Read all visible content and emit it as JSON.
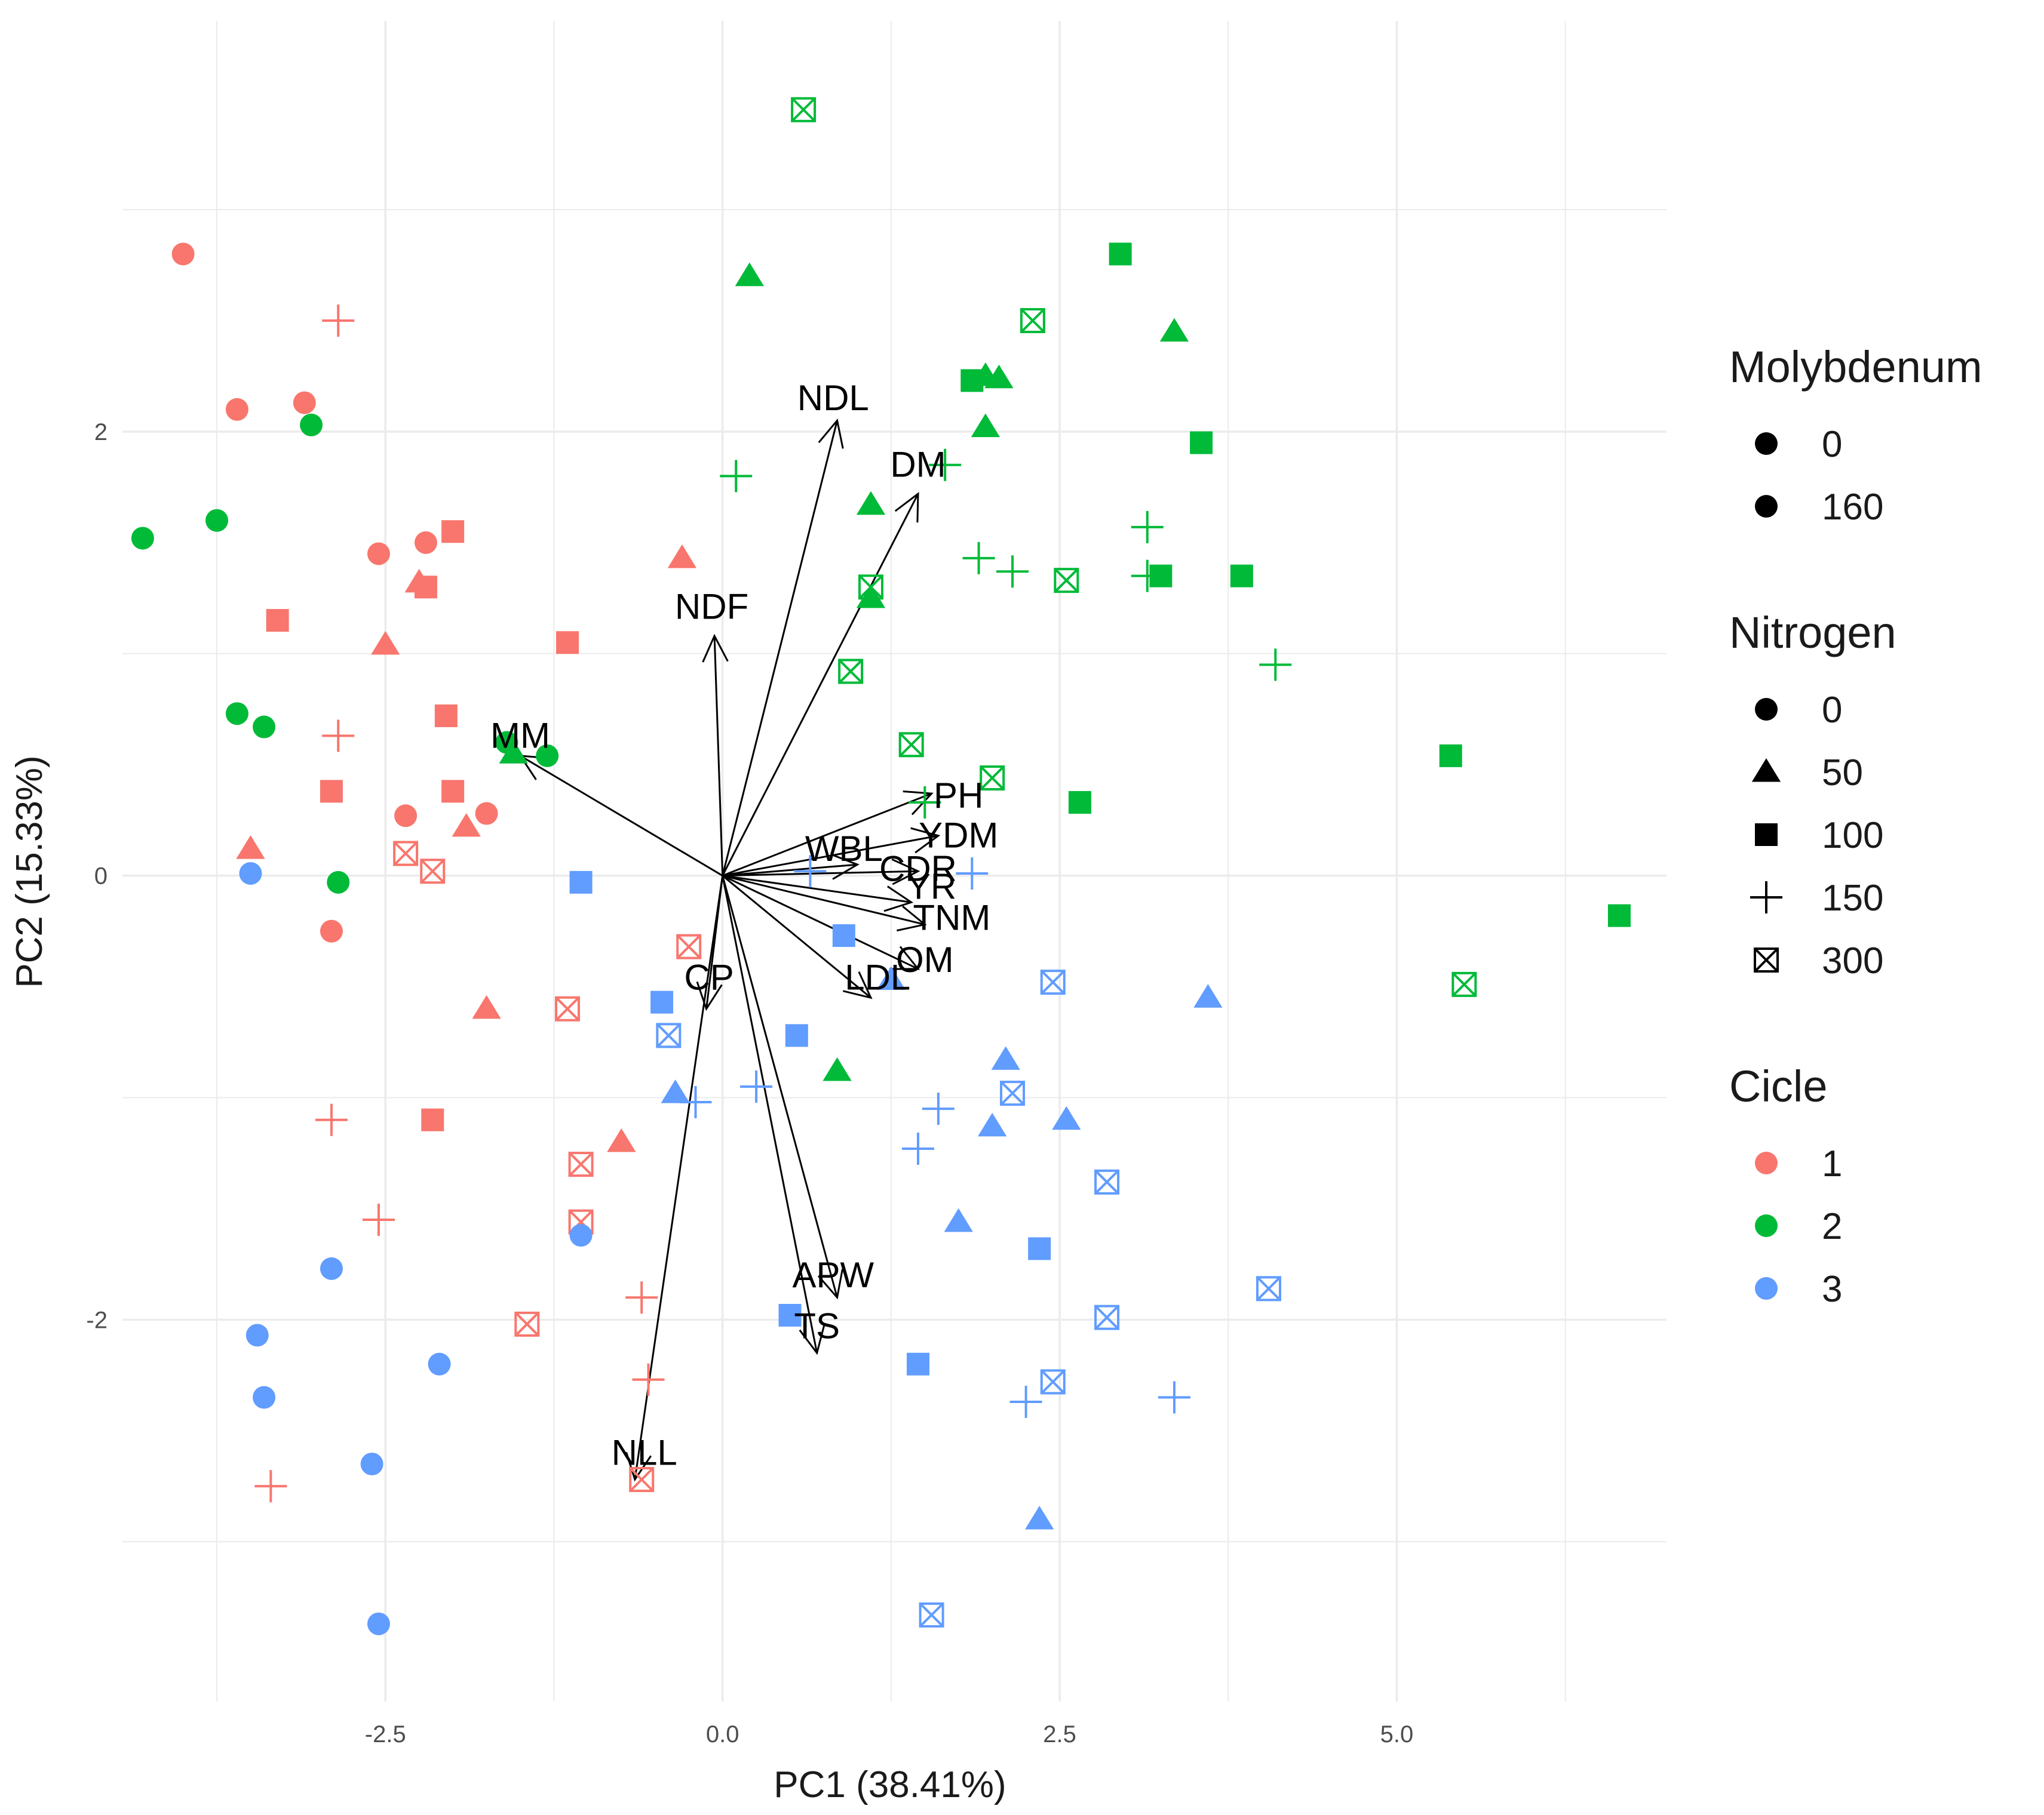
{
  "chart_data": {
    "type": "scatter",
    "subtype": "pca-biplot",
    "title": "",
    "xlabel": "PC1 (38.41%)",
    "ylabel": "PC2 (15.33%)",
    "xlim": [
      -4.45,
      7.0
    ],
    "ylim": [
      -3.72,
      3.85
    ],
    "xticks": [
      -2.5,
      0.0,
      2.5,
      5.0
    ],
    "xtick_labels": [
      "-2.5",
      "0.0",
      "2.5",
      "5.0"
    ],
    "yticks": [
      -2,
      0,
      2
    ],
    "ytick_labels": [
      "-2",
      "0",
      "2"
    ],
    "grid": true,
    "legend_position": "right",
    "colors": {
      "1": "#F8766D",
      "2": "#00BA38",
      "3": "#619CFF"
    },
    "legends": [
      {
        "title": "Molybdenum",
        "key": "mo",
        "items": [
          {
            "label": "0",
            "shape": "circle"
          },
          {
            "label": "160",
            "shape": "circle"
          }
        ]
      },
      {
        "title": "Nitrogen",
        "key": "n",
        "items": [
          {
            "label": "0",
            "shape": "circle"
          },
          {
            "label": "50",
            "shape": "triangle"
          },
          {
            "label": "100",
            "shape": "square"
          },
          {
            "label": "150",
            "shape": "plus"
          },
          {
            "label": "300",
            "shape": "boxx"
          }
        ]
      },
      {
        "title": "Cicle",
        "key": "c",
        "items": [
          {
            "label": "1",
            "shape": "circle",
            "color": "#F8766D"
          },
          {
            "label": "2",
            "shape": "circle",
            "color": "#00BA38"
          },
          {
            "label": "3",
            "shape": "circle",
            "color": "#619CFF"
          }
        ]
      }
    ],
    "loadings": [
      {
        "label": "NDL",
        "x": 0.85,
        "y": 2.05,
        "lx": 0.82,
        "ly": 2.15
      },
      {
        "label": "DM",
        "x": 1.45,
        "y": 1.72,
        "lx": 1.45,
        "ly": 1.85
      },
      {
        "label": "NDF",
        "x": -0.06,
        "y": 1.08,
        "lx": -0.08,
        "ly": 1.21
      },
      {
        "label": "MM",
        "x": -1.5,
        "y": 0.54,
        "lx": -1.5,
        "ly": 0.63
      },
      {
        "label": "PH",
        "x": 1.55,
        "y": 0.37,
        "lx": 1.75,
        "ly": 0.36
      },
      {
        "label": "YDM",
        "x": 1.6,
        "y": 0.18,
        "lx": 1.75,
        "ly": 0.18
      },
      {
        "label": "WBL",
        "x": 1.0,
        "y": 0.05,
        "lx": 0.9,
        "ly": 0.12
      },
      {
        "label": "CDR",
        "x": 1.45,
        "y": 0.02,
        "lx": 1.45,
        "ly": 0.03
      },
      {
        "label": "YR",
        "x": 1.4,
        "y": -0.12,
        "lx": 1.55,
        "ly": -0.05
      },
      {
        "label": "TNM",
        "x": 1.5,
        "y": -0.22,
        "lx": 1.7,
        "ly": -0.19
      },
      {
        "label": "OM",
        "x": 1.45,
        "y": -0.42,
        "lx": 1.5,
        "ly": -0.38
      },
      {
        "label": "LDL",
        "x": 1.1,
        "y": -0.55,
        "lx": 1.15,
        "ly": -0.46
      },
      {
        "label": "CP",
        "x": -0.12,
        "y": -0.6,
        "lx": -0.1,
        "ly": -0.46
      },
      {
        "label": "APW",
        "x": 0.85,
        "y": -1.9,
        "lx": 0.82,
        "ly": -1.8
      },
      {
        "label": "TS",
        "x": 0.7,
        "y": -2.15,
        "lx": 0.7,
        "ly": -2.03
      },
      {
        "label": "NLL",
        "x": -0.65,
        "y": -2.72,
        "lx": -0.58,
        "ly": -2.6
      }
    ],
    "points": [
      {
        "x": -4.0,
        "y": 2.8,
        "c": 1,
        "n": "0"
      },
      {
        "x": -2.85,
        "y": 2.5,
        "c": 1,
        "n": "150"
      },
      {
        "x": -3.6,
        "y": 2.1,
        "c": 1,
        "n": "0"
      },
      {
        "x": -3.1,
        "y": 2.13,
        "c": 1,
        "n": "0"
      },
      {
        "x": -2.55,
        "y": 1.45,
        "c": 1,
        "n": "0"
      },
      {
        "x": -2.2,
        "y": 1.5,
        "c": 1,
        "n": "0"
      },
      {
        "x": -2.0,
        "y": 1.55,
        "c": 1,
        "n": "100"
      },
      {
        "x": -3.3,
        "y": 1.15,
        "c": 1,
        "n": "100"
      },
      {
        "x": -2.25,
        "y": 1.32,
        "c": 1,
        "n": "50"
      },
      {
        "x": -2.2,
        "y": 1.3,
        "c": 1,
        "n": "100"
      },
      {
        "x": -2.5,
        "y": 1.04,
        "c": 1,
        "n": "50"
      },
      {
        "x": -1.15,
        "y": 1.05,
        "c": 1,
        "n": "100"
      },
      {
        "x": -0.3,
        "y": 1.43,
        "c": 1,
        "n": "50"
      },
      {
        "x": -2.85,
        "y": 0.63,
        "c": 1,
        "n": "150"
      },
      {
        "x": -2.05,
        "y": 0.72,
        "c": 1,
        "n": "100"
      },
      {
        "x": -2.9,
        "y": 0.38,
        "c": 1,
        "n": "100"
      },
      {
        "x": -2.0,
        "y": 0.38,
        "c": 1,
        "n": "100"
      },
      {
        "x": -2.35,
        "y": 0.27,
        "c": 1,
        "n": "0"
      },
      {
        "x": -1.75,
        "y": 0.28,
        "c": 1,
        "n": "0"
      },
      {
        "x": -1.9,
        "y": 0.22,
        "c": 1,
        "n": "50"
      },
      {
        "x": -3.5,
        "y": 0.12,
        "c": 1,
        "n": "50"
      },
      {
        "x": -2.35,
        "y": 0.1,
        "c": 1,
        "n": "300"
      },
      {
        "x": -2.15,
        "y": 0.02,
        "c": 1,
        "n": "300"
      },
      {
        "x": -2.9,
        "y": -0.25,
        "c": 1,
        "n": "0"
      },
      {
        "x": -1.75,
        "y": -0.6,
        "c": 1,
        "n": "50"
      },
      {
        "x": -1.15,
        "y": -0.6,
        "c": 1,
        "n": "300"
      },
      {
        "x": -0.25,
        "y": -0.32,
        "c": 1,
        "n": "300"
      },
      {
        "x": -2.15,
        "y": -1.1,
        "c": 1,
        "n": "100"
      },
      {
        "x": -2.9,
        "y": -1.1,
        "c": 1,
        "n": "150"
      },
      {
        "x": -0.75,
        "y": -1.2,
        "c": 1,
        "n": "50"
      },
      {
        "x": -1.05,
        "y": -1.3,
        "c": 1,
        "n": "300"
      },
      {
        "x": -2.55,
        "y": -1.55,
        "c": 1,
        "n": "150"
      },
      {
        "x": -1.05,
        "y": -1.56,
        "c": 1,
        "n": "300"
      },
      {
        "x": -0.6,
        "y": -1.9,
        "c": 1,
        "n": "150"
      },
      {
        "x": -1.45,
        "y": -2.02,
        "c": 1,
        "n": "300"
      },
      {
        "x": -0.55,
        "y": -2.27,
        "c": 1,
        "n": "150"
      },
      {
        "x": -0.6,
        "y": -2.72,
        "c": 1,
        "n": "300"
      },
      {
        "x": -3.35,
        "y": -2.75,
        "c": 1,
        "n": "150"
      },
      {
        "x": 0.6,
        "y": 3.45,
        "c": 2,
        "n": "300"
      },
      {
        "x": 0.2,
        "y": 2.7,
        "c": 2,
        "n": "50"
      },
      {
        "x": 2.95,
        "y": 2.8,
        "c": 2,
        "n": "100"
      },
      {
        "x": 2.3,
        "y": 2.5,
        "c": 2,
        "n": "300"
      },
      {
        "x": 3.35,
        "y": 2.45,
        "c": 2,
        "n": "50"
      },
      {
        "x": 1.85,
        "y": 2.23,
        "c": 2,
        "n": "100"
      },
      {
        "x": 1.95,
        "y": 2.25,
        "c": 2,
        "n": "50"
      },
      {
        "x": 2.05,
        "y": 2.24,
        "c": 2,
        "n": "50"
      },
      {
        "x": 1.95,
        "y": 2.02,
        "c": 2,
        "n": "50"
      },
      {
        "x": 3.55,
        "y": 1.95,
        "c": 2,
        "n": "100"
      },
      {
        "x": -3.05,
        "y": 2.03,
        "c": 2,
        "n": "0"
      },
      {
        "x": 0.1,
        "y": 1.8,
        "c": 2,
        "n": "150"
      },
      {
        "x": 1.1,
        "y": 1.67,
        "c": 2,
        "n": "50"
      },
      {
        "x": 1.65,
        "y": 1.85,
        "c": 2,
        "n": "150"
      },
      {
        "x": -3.75,
        "y": 1.6,
        "c": 2,
        "n": "0"
      },
      {
        "x": -4.3,
        "y": 1.52,
        "c": 2,
        "n": "0"
      },
      {
        "x": 3.15,
        "y": 1.57,
        "c": 2,
        "n": "150"
      },
      {
        "x": 1.9,
        "y": 1.43,
        "c": 2,
        "n": "150"
      },
      {
        "x": 2.15,
        "y": 1.37,
        "c": 2,
        "n": "150"
      },
      {
        "x": 2.55,
        "y": 1.33,
        "c": 2,
        "n": "300"
      },
      {
        "x": 3.15,
        "y": 1.35,
        "c": 2,
        "n": "150"
      },
      {
        "x": 3.25,
        "y": 1.35,
        "c": 2,
        "n": "100"
      },
      {
        "x": 3.85,
        "y": 1.35,
        "c": 2,
        "n": "100"
      },
      {
        "x": 1.1,
        "y": 1.3,
        "c": 2,
        "n": "300"
      },
      {
        "x": 1.1,
        "y": 1.25,
        "c": 2,
        "n": "50"
      },
      {
        "x": 4.1,
        "y": 0.95,
        "c": 2,
        "n": "150"
      },
      {
        "x": 0.95,
        "y": 0.92,
        "c": 2,
        "n": "300"
      },
      {
        "x": -3.6,
        "y": 0.73,
        "c": 2,
        "n": "0"
      },
      {
        "x": -3.4,
        "y": 0.67,
        "c": 2,
        "n": "0"
      },
      {
        "x": 1.4,
        "y": 0.59,
        "c": 2,
        "n": "300"
      },
      {
        "x": -1.6,
        "y": 0.6,
        "c": 2,
        "n": "0"
      },
      {
        "x": -1.3,
        "y": 0.54,
        "c": 2,
        "n": "0"
      },
      {
        "x": -1.55,
        "y": 0.55,
        "c": 2,
        "n": "50"
      },
      {
        "x": 5.4,
        "y": 0.54,
        "c": 2,
        "n": "100"
      },
      {
        "x": 2.0,
        "y": 0.44,
        "c": 2,
        "n": "300"
      },
      {
        "x": 2.65,
        "y": 0.33,
        "c": 2,
        "n": "100"
      },
      {
        "x": 1.5,
        "y": 0.33,
        "c": 2,
        "n": "150"
      },
      {
        "x": -2.85,
        "y": -0.03,
        "c": 2,
        "n": "0"
      },
      {
        "x": 6.65,
        "y": -0.18,
        "c": 2,
        "n": "100"
      },
      {
        "x": 5.5,
        "y": -0.49,
        "c": 2,
        "n": "300"
      },
      {
        "x": 0.85,
        "y": -0.88,
        "c": 2,
        "n": "50"
      },
      {
        "x": -3.5,
        "y": 0.01,
        "c": 3,
        "n": "0"
      },
      {
        "x": -1.05,
        "y": -0.03,
        "c": 3,
        "n": "100"
      },
      {
        "x": 0.65,
        "y": 0.02,
        "c": 3,
        "n": "150"
      },
      {
        "x": 1.85,
        "y": 0.01,
        "c": 3,
        "n": "150"
      },
      {
        "x": 0.9,
        "y": -0.27,
        "c": 3,
        "n": "100"
      },
      {
        "x": 1.25,
        "y": -0.47,
        "c": 3,
        "n": "50"
      },
      {
        "x": 2.45,
        "y": -0.48,
        "c": 3,
        "n": "300"
      },
      {
        "x": 3.6,
        "y": -0.55,
        "c": 3,
        "n": "50"
      },
      {
        "x": -0.45,
        "y": -0.57,
        "c": 3,
        "n": "100"
      },
      {
        "x": -0.4,
        "y": -0.72,
        "c": 3,
        "n": "300"
      },
      {
        "x": 0.55,
        "y": -0.72,
        "c": 3,
        "n": "100"
      },
      {
        "x": 2.1,
        "y": -0.83,
        "c": 3,
        "n": "50"
      },
      {
        "x": 0.25,
        "y": -0.95,
        "c": 3,
        "n": "150"
      },
      {
        "x": -0.35,
        "y": -0.98,
        "c": 3,
        "n": "50"
      },
      {
        "x": -0.2,
        "y": -1.02,
        "c": 3,
        "n": "150"
      },
      {
        "x": 2.15,
        "y": -0.98,
        "c": 3,
        "n": "300"
      },
      {
        "x": 1.6,
        "y": -1.05,
        "c": 3,
        "n": "150"
      },
      {
        "x": 2.0,
        "y": -1.13,
        "c": 3,
        "n": "50"
      },
      {
        "x": 2.55,
        "y": -1.1,
        "c": 3,
        "n": "50"
      },
      {
        "x": 1.45,
        "y": -1.23,
        "c": 3,
        "n": "150"
      },
      {
        "x": 2.85,
        "y": -1.38,
        "c": 3,
        "n": "300"
      },
      {
        "x": 1.75,
        "y": -1.56,
        "c": 3,
        "n": "50"
      },
      {
        "x": -1.05,
        "y": -1.62,
        "c": 3,
        "n": "0"
      },
      {
        "x": 2.35,
        "y": -1.68,
        "c": 3,
        "n": "100"
      },
      {
        "x": -2.9,
        "y": -1.77,
        "c": 3,
        "n": "0"
      },
      {
        "x": 4.05,
        "y": -1.86,
        "c": 3,
        "n": "300"
      },
      {
        "x": 0.5,
        "y": -1.98,
        "c": 3,
        "n": "100"
      },
      {
        "x": 2.85,
        "y": -1.99,
        "c": 3,
        "n": "300"
      },
      {
        "x": -3.45,
        "y": -2.07,
        "c": 3,
        "n": "0"
      },
      {
        "x": -2.1,
        "y": -2.2,
        "c": 3,
        "n": "0"
      },
      {
        "x": 1.45,
        "y": -2.2,
        "c": 3,
        "n": "100"
      },
      {
        "x": 2.45,
        "y": -2.28,
        "c": 3,
        "n": "300"
      },
      {
        "x": -3.4,
        "y": -2.35,
        "c": 3,
        "n": "0"
      },
      {
        "x": 2.25,
        "y": -2.37,
        "c": 3,
        "n": "150"
      },
      {
        "x": 3.35,
        "y": -2.35,
        "c": 3,
        "n": "150"
      },
      {
        "x": -2.6,
        "y": -2.65,
        "c": 3,
        "n": "0"
      },
      {
        "x": 2.35,
        "y": -2.9,
        "c": 3,
        "n": "50"
      },
      {
        "x": -2.55,
        "y": -3.37,
        "c": 3,
        "n": "0"
      },
      {
        "x": 1.55,
        "y": -3.33,
        "c": 3,
        "n": "300"
      }
    ]
  }
}
